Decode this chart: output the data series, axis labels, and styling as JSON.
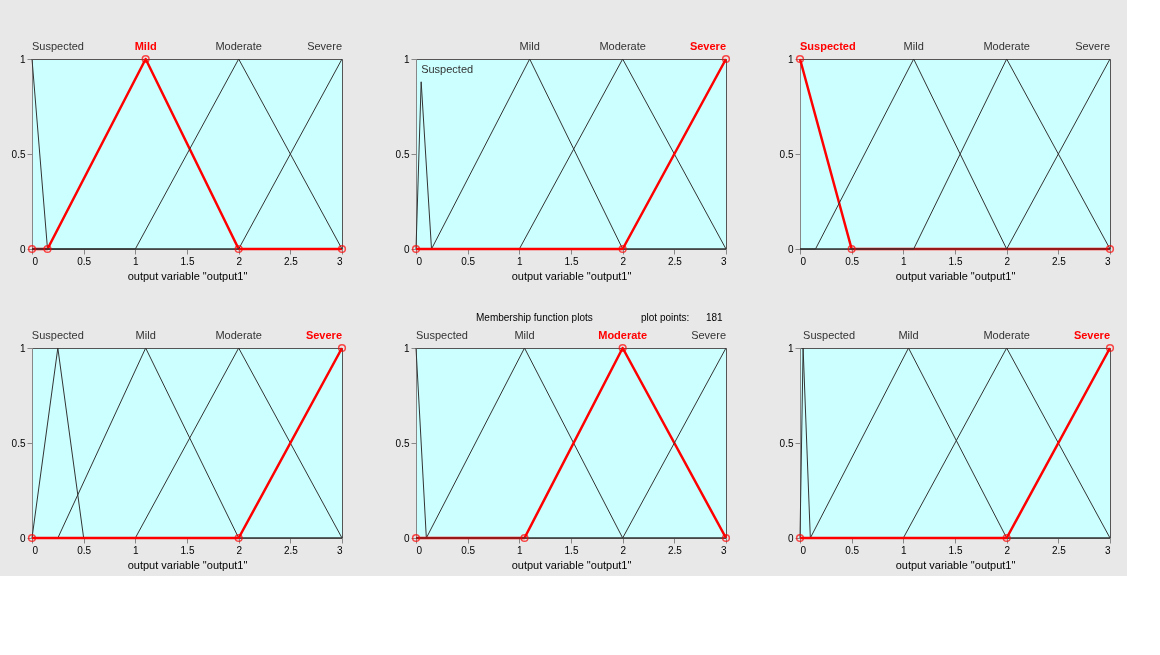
{
  "chart_data": [
    {
      "type": "line",
      "xlabel": "output variable \"output1\"",
      "xlim": [
        0,
        3
      ],
      "ylim": [
        0,
        1
      ],
      "xticks": [
        0,
        0.5,
        1,
        1.5,
        2,
        2.5,
        3
      ],
      "yticks": [
        0,
        0.5,
        1
      ],
      "grid": false,
      "series": [
        {
          "name": "Suspected",
          "color": "#333333",
          "x": [
            0,
            0.15,
            3
          ],
          "values": [
            1,
            0,
            0
          ]
        },
        {
          "name": "Mild",
          "color": "#ff0000",
          "marker": "circle",
          "x": [
            0,
            0.15,
            1.1,
            2,
            3
          ],
          "values": [
            0,
            0,
            1,
            0,
            0
          ]
        },
        {
          "name": "Moderate",
          "color": "#333333",
          "x": [
            0,
            1,
            2,
            3
          ],
          "values": [
            0,
            0,
            1,
            0
          ]
        },
        {
          "name": "Severe",
          "color": "#333333",
          "x": [
            0,
            2,
            3
          ],
          "values": [
            0,
            0,
            1
          ]
        }
      ]
    },
    {
      "type": "line",
      "xlabel": "output variable \"output1\"",
      "xlim": [
        0,
        3
      ],
      "ylim": [
        0,
        1
      ],
      "xticks": [
        0,
        0.5,
        1,
        1.5,
        2,
        2.5,
        3
      ],
      "yticks": [
        0,
        0.5,
        1
      ],
      "grid": false,
      "series": [
        {
          "name": "Suspected",
          "color": "#333333",
          "x": [
            0,
            0.05,
            0.15,
            3
          ],
          "values": [
            0,
            0.88,
            0,
            0
          ]
        },
        {
          "name": "Mild",
          "color": "#333333",
          "x": [
            0,
            0.15,
            1.1,
            2,
            3
          ],
          "values": [
            0,
            0,
            1,
            0,
            0
          ]
        },
        {
          "name": "Moderate",
          "color": "#333333",
          "x": [
            0,
            1,
            2,
            3
          ],
          "values": [
            0,
            0,
            1,
            0
          ]
        },
        {
          "name": "Severe",
          "color": "#ff0000",
          "marker": "circle",
          "x": [
            0,
            2,
            3
          ],
          "values": [
            0,
            0,
            1
          ]
        }
      ]
    },
    {
      "type": "line",
      "xlabel": "output variable \"output1\"",
      "xlim": [
        0,
        3
      ],
      "ylim": [
        0,
        1
      ],
      "xticks": [
        0,
        0.5,
        1,
        1.5,
        2,
        2.5,
        3
      ],
      "yticks": [
        0,
        0.5,
        1
      ],
      "grid": false,
      "series": [
        {
          "name": "Suspected",
          "color": "#ff0000",
          "marker": "circle",
          "x": [
            0,
            0.5,
            3
          ],
          "values": [
            1,
            0,
            0
          ]
        },
        {
          "name": "Mild",
          "color": "#333333",
          "x": [
            0,
            0.15,
            1.1,
            2,
            3
          ],
          "values": [
            0,
            0,
            1,
            0,
            0
          ]
        },
        {
          "name": "Moderate",
          "color": "#333333",
          "x": [
            0,
            1.1,
            2,
            3
          ],
          "values": [
            0,
            0,
            1,
            0
          ]
        },
        {
          "name": "Severe",
          "color": "#333333",
          "x": [
            0,
            2,
            3
          ],
          "values": [
            0,
            0,
            1
          ]
        }
      ]
    },
    {
      "type": "line",
      "xlabel": "output variable \"output1\"",
      "xlim": [
        0,
        3
      ],
      "ylim": [
        0,
        1
      ],
      "xticks": [
        0,
        0.5,
        1,
        1.5,
        2,
        2.5,
        3
      ],
      "yticks": [
        0,
        0.5,
        1
      ],
      "grid": false,
      "series": [
        {
          "name": "Suspected",
          "color": "#333333",
          "x": [
            0,
            0.25,
            0.5,
            3
          ],
          "values": [
            0,
            1,
            0,
            0
          ]
        },
        {
          "name": "Mild",
          "color": "#333333",
          "x": [
            0,
            0.25,
            1.1,
            2,
            3
          ],
          "values": [
            0,
            0,
            1,
            0,
            0
          ]
        },
        {
          "name": "Moderate",
          "color": "#333333",
          "x": [
            0,
            1,
            2,
            3
          ],
          "values": [
            0,
            0,
            1,
            0
          ]
        },
        {
          "name": "Severe",
          "color": "#ff0000",
          "marker": "circle",
          "x": [
            0,
            2,
            3
          ],
          "values": [
            0,
            0,
            1
          ]
        }
      ]
    },
    {
      "type": "line",
      "xlabel": "output variable \"output1\"",
      "xlim": [
        0,
        3
      ],
      "ylim": [
        0,
        1
      ],
      "xticks": [
        0,
        0.5,
        1,
        1.5,
        2,
        2.5,
        3
      ],
      "yticks": [
        0,
        0.5,
        1
      ],
      "grid": false,
      "annotations": [
        "Membership function plots",
        "plot points:",
        "181"
      ],
      "series": [
        {
          "name": "Suspected",
          "color": "#333333",
          "x": [
            0,
            0.1,
            3
          ],
          "values": [
            1,
            0,
            0
          ]
        },
        {
          "name": "Mild",
          "color": "#333333",
          "x": [
            0,
            0.1,
            1.05,
            2,
            3
          ],
          "values": [
            0,
            0,
            1,
            0,
            0
          ]
        },
        {
          "name": "Moderate",
          "color": "#ff0000",
          "marker": "circle",
          "x": [
            0,
            1.05,
            2,
            3
          ],
          "values": [
            0,
            0,
            1,
            0
          ]
        },
        {
          "name": "Severe",
          "color": "#333333",
          "x": [
            0,
            2,
            3
          ],
          "values": [
            0,
            0,
            1
          ]
        }
      ]
    },
    {
      "type": "line",
      "xlabel": "output variable \"output1\"",
      "xlim": [
        0,
        3
      ],
      "ylim": [
        0,
        1
      ],
      "xticks": [
        0,
        0.5,
        1,
        1.5,
        2,
        2.5,
        3
      ],
      "yticks": [
        0,
        0.5,
        1
      ],
      "grid": false,
      "series": [
        {
          "name": "Suspected",
          "color": "#333333",
          "x": [
            0,
            0.03,
            0.1,
            3
          ],
          "values": [
            0,
            1,
            0,
            0
          ]
        },
        {
          "name": "Mild",
          "color": "#333333",
          "x": [
            0,
            0.1,
            1.05,
            2,
            3
          ],
          "values": [
            0,
            0,
            1,
            0,
            0
          ]
        },
        {
          "name": "Moderate",
          "color": "#333333",
          "x": [
            0,
            1,
            2,
            3
          ],
          "values": [
            0,
            0,
            1,
            0
          ]
        },
        {
          "name": "Severe",
          "color": "#ff0000",
          "marker": "circle",
          "x": [
            0,
            2,
            3
          ],
          "values": [
            0,
            0,
            1
          ]
        }
      ]
    }
  ]
}
